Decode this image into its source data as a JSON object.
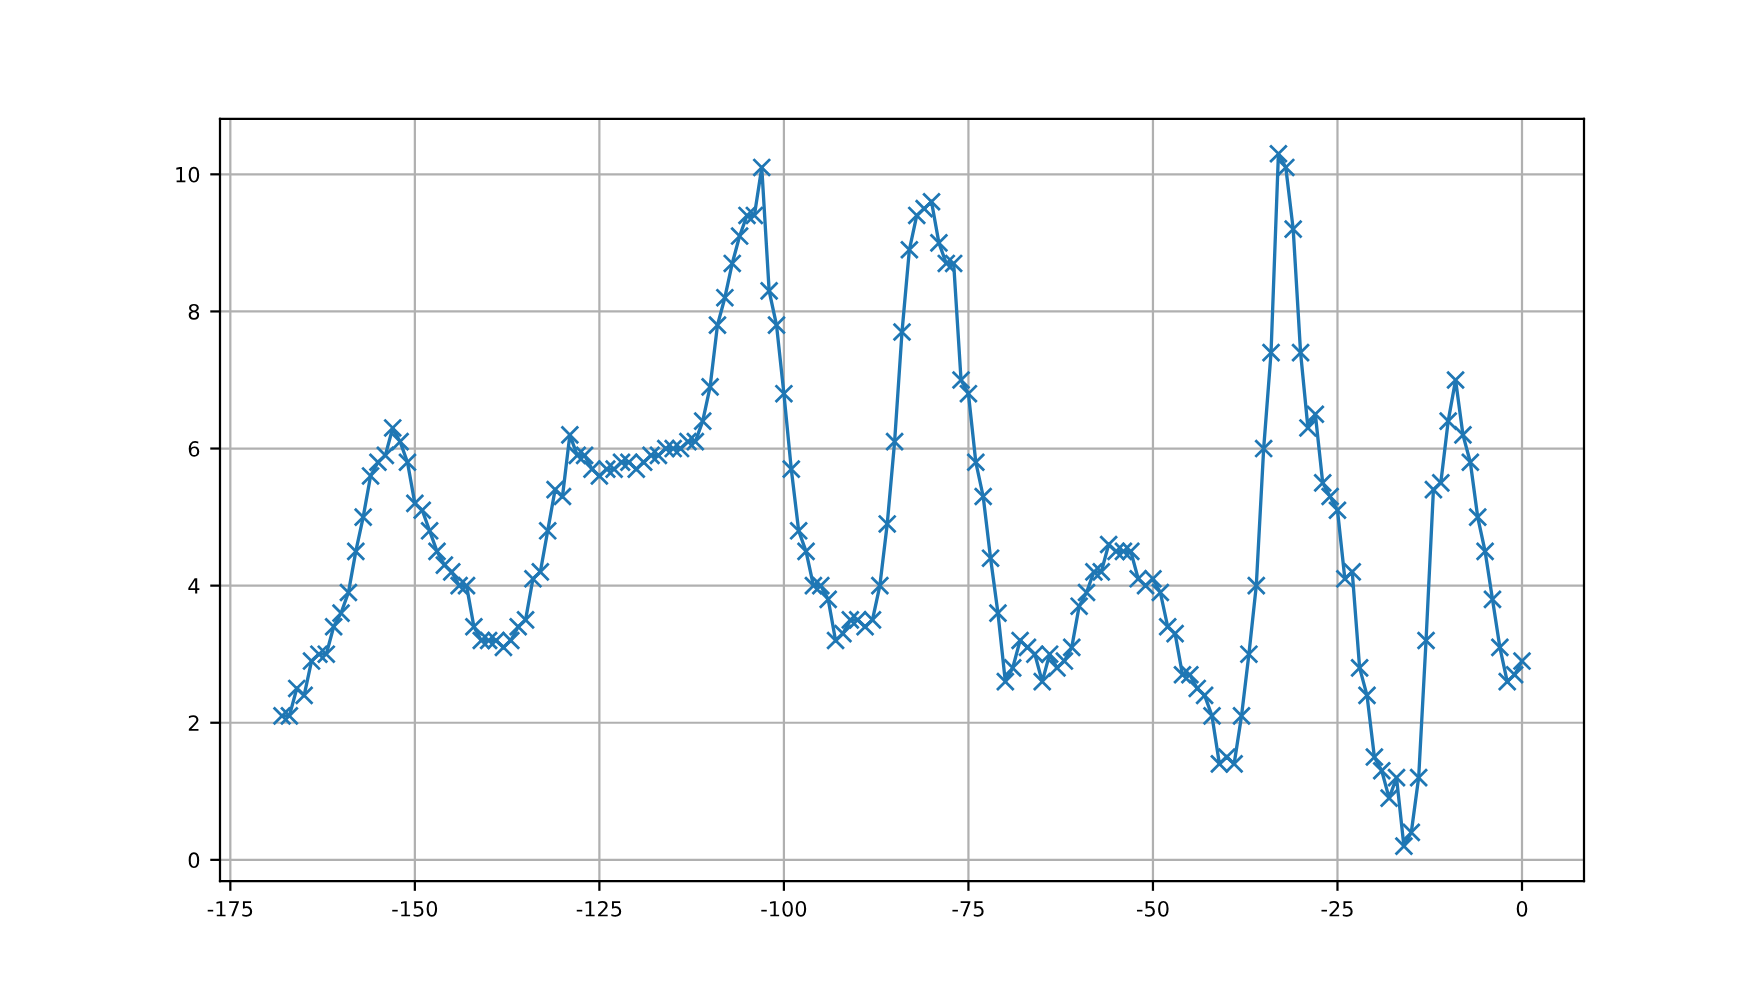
{
  "chart_data": {
    "type": "line",
    "color": "#1f77b4",
    "marker": "cross",
    "grid": true,
    "x": [
      -168,
      -167,
      -166,
      -165,
      -164,
      -163,
      -162,
      -161,
      -160,
      -159,
      -158,
      -157,
      -156,
      -155,
      -154,
      -153,
      -152,
      -151,
      -150,
      -149,
      -148,
      -147,
      -146,
      -145,
      -144,
      -143,
      -142,
      -141,
      -140,
      -139,
      -138,
      -137,
      -136,
      -135,
      -134,
      -133,
      -132,
      -131,
      -130,
      -129,
      -128,
      -127,
      -126,
      -125,
      -124,
      -123,
      -122,
      -121,
      -120,
      -119,
      -118,
      -117,
      -116,
      -115,
      -114,
      -113,
      -112,
      -111,
      -110,
      -109,
      -108,
      -107,
      -106,
      -105,
      -104,
      -103,
      -102,
      -101,
      -100,
      -99,
      -98,
      -97,
      -96,
      -95,
      -94,
      -93,
      -92,
      -91,
      -90,
      -89,
      -88,
      -87,
      -86,
      -85,
      -84,
      -83,
      -82,
      -81,
      -80,
      -79,
      -78,
      -77,
      -76,
      -75,
      -74,
      -73,
      -72,
      -71,
      -70,
      -69,
      -68,
      -67,
      -66,
      -65,
      -64,
      -63,
      -62,
      -61,
      -60,
      -59,
      -58,
      -57,
      -56,
      -55,
      -54,
      -53,
      -52,
      -51,
      -50,
      -49,
      -48,
      -47,
      -46,
      -45,
      -44,
      -43,
      -42,
      -41,
      -40,
      -39,
      -38,
      -37,
      -36,
      -35,
      -34,
      -33,
      -32,
      -31,
      -30,
      -29,
      -28,
      -27,
      -26,
      -25,
      -24,
      -23,
      -22,
      -21,
      -20,
      -19,
      -18,
      -17,
      -16,
      -15,
      -14,
      -13,
      -12,
      -11,
      -10,
      -9,
      -8,
      -7,
      -6,
      -5,
      -4,
      -3,
      -2,
      -1,
      0
    ],
    "values": [
      2.1,
      2.1,
      2.5,
      2.4,
      2.9,
      3.0,
      3.0,
      3.4,
      3.6,
      3.9,
      4.5,
      5.0,
      5.6,
      5.8,
      5.9,
      6.3,
      6.1,
      5.8,
      5.2,
      5.1,
      4.8,
      4.5,
      4.3,
      4.2,
      4.0,
      4.0,
      3.4,
      3.2,
      3.2,
      3.2,
      3.1,
      3.2,
      3.4,
      3.5,
      4.1,
      4.2,
      4.8,
      5.4,
      5.3,
      6.2,
      5.9,
      5.9,
      5.7,
      5.6,
      5.7,
      5.7,
      5.8,
      5.8,
      5.7,
      5.8,
      5.9,
      5.9,
      6.0,
      6.0,
      6.0,
      6.1,
      6.1,
      6.4,
      6.9,
      7.8,
      8.2,
      8.7,
      9.1,
      9.4,
      9.4,
      10.1,
      8.3,
      7.8,
      6.8,
      5.7,
      4.8,
      4.5,
      4.0,
      4.0,
      3.8,
      3.2,
      3.3,
      3.5,
      3.5,
      3.4,
      3.5,
      4.0,
      4.9,
      6.1,
      7.7,
      8.9,
      9.4,
      9.5,
      9.6,
      9.0,
      8.7,
      8.7,
      7.0,
      6.8,
      5.8,
      5.3,
      4.4,
      3.6,
      2.6,
      2.8,
      3.2,
      3.1,
      3.0,
      2.6,
      3.0,
      2.8,
      2.9,
      3.1,
      3.7,
      3.9,
      4.2,
      4.2,
      4.6,
      4.5,
      4.5,
      4.5,
      4.1,
      4.0,
      4.1,
      3.9,
      3.4,
      3.3,
      2.7,
      2.7,
      2.5,
      2.4,
      2.1,
      1.4,
      1.5,
      1.4,
      2.1,
      3.0,
      4.0,
      6.0,
      7.4,
      10.3,
      10.1,
      9.2,
      7.4,
      6.3,
      6.5,
      5.5,
      5.3,
      5.1,
      4.1,
      4.2,
      2.8,
      2.4,
      1.5,
      1.3,
      0.9,
      1.2,
      0.2,
      0.4,
      1.2,
      3.2,
      5.4,
      5.5,
      6.4,
      7.0,
      6.2,
      5.8,
      5.0,
      4.5,
      3.8,
      3.1,
      2.6,
      2.7,
      2.9
    ],
    "xlim": [
      -176.4,
      8.4
    ],
    "xticks": [
      -175,
      -150,
      -125,
      -100,
      -75,
      -50,
      -25,
      0
    ],
    "ylim": [
      -0.31,
      10.81
    ],
    "yticks": [
      0,
      2,
      4,
      6,
      8,
      10
    ]
  }
}
